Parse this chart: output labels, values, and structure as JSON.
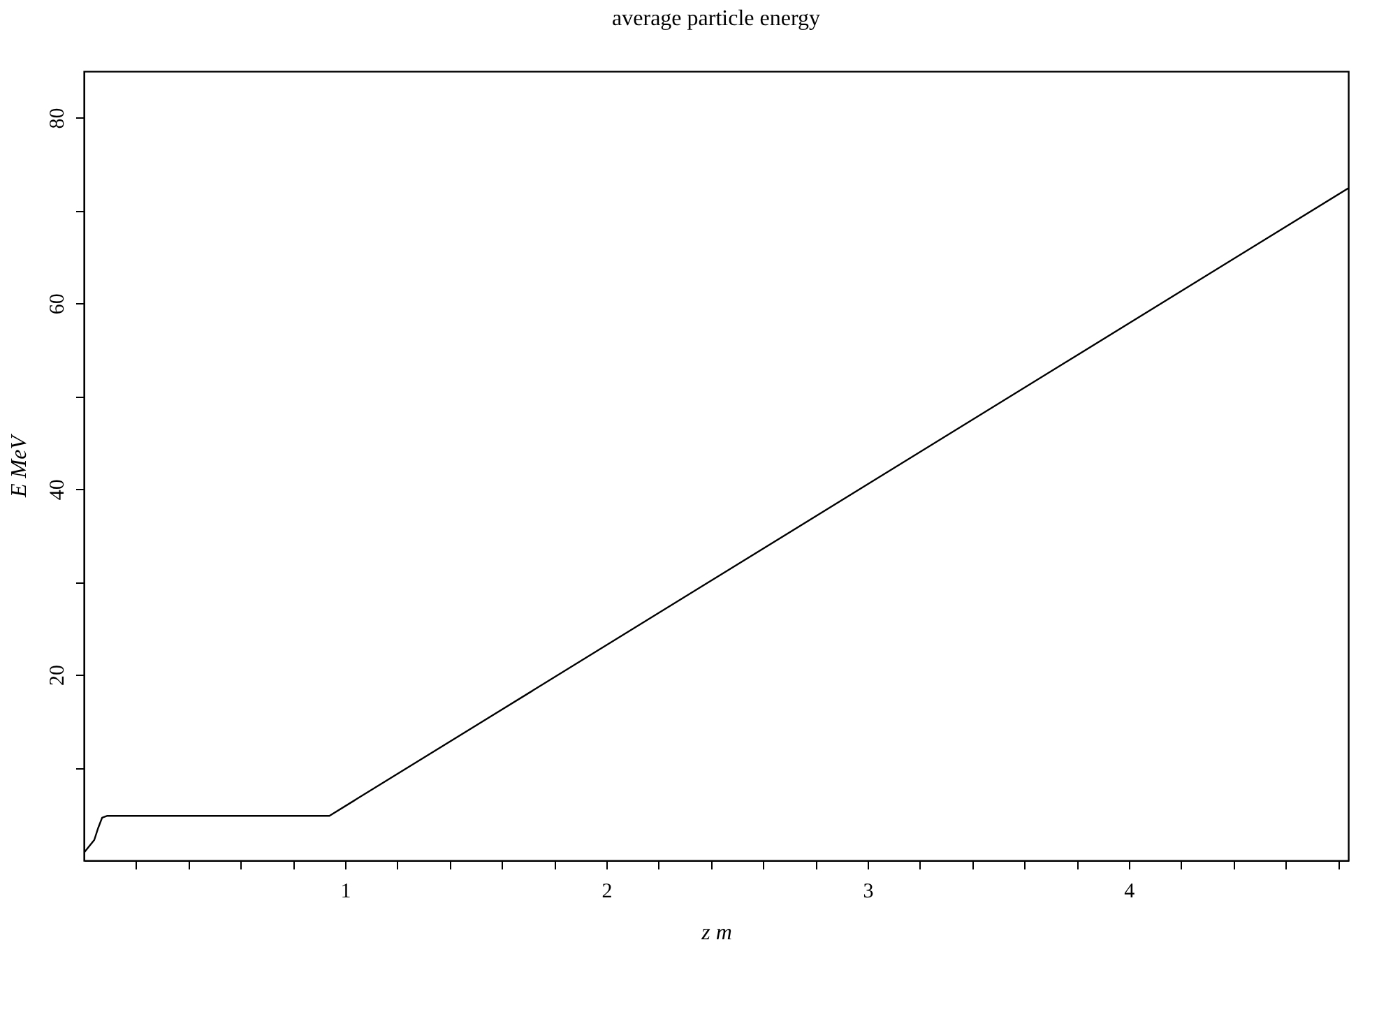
{
  "chart_data": {
    "type": "line",
    "title": "average particle energy",
    "xlabel": "z m",
    "ylabel": "E MeV",
    "x": [
      0,
      0.02,
      0.04,
      0.055,
      0.07,
      0.09,
      0.94,
      4.84
    ],
    "series": [
      {
        "color": "#000000",
        "values": [
          0.8,
          1.5,
          2.2,
          3.5,
          4.6,
          4.8,
          4.8,
          72.4
        ]
      }
    ],
    "xlim": [
      0,
      4.84
    ],
    "ylim": [
      0,
      85
    ],
    "xticks": [
      {
        "value": 0.2,
        "label": null
      },
      {
        "value": 0.4,
        "label": null
      },
      {
        "value": 0.6,
        "label": null
      },
      {
        "value": 0.8,
        "label": null
      },
      1,
      {
        "value": 1.2,
        "label": null
      },
      {
        "value": 1.4,
        "label": null
      },
      {
        "value": 1.6,
        "label": null
      },
      {
        "value": 1.8,
        "label": null
      },
      2,
      {
        "value": 2.2,
        "label": null
      },
      {
        "value": 2.4,
        "label": null
      },
      {
        "value": 2.6,
        "label": null
      },
      {
        "value": 2.8,
        "label": null
      },
      3,
      {
        "value": 3.2,
        "label": null
      },
      {
        "value": 3.4,
        "label": null
      },
      {
        "value": 3.6,
        "label": null
      },
      {
        "value": 3.8,
        "label": null
      },
      4,
      {
        "value": 4.2,
        "label": null
      },
      {
        "value": 4.4,
        "label": null
      },
      {
        "value": 4.6,
        "label": null
      },
      {
        "value": 4.8,
        "label": null
      }
    ],
    "yticks": [
      {
        "value": 10,
        "label": null
      },
      20,
      {
        "value": 30,
        "label": null
      },
      40,
      {
        "value": 50,
        "label": null
      },
      60,
      {
        "value": 70,
        "label": null
      },
      80
    ],
    "grid": false,
    "marker": "none",
    "line_style": "solid"
  }
}
